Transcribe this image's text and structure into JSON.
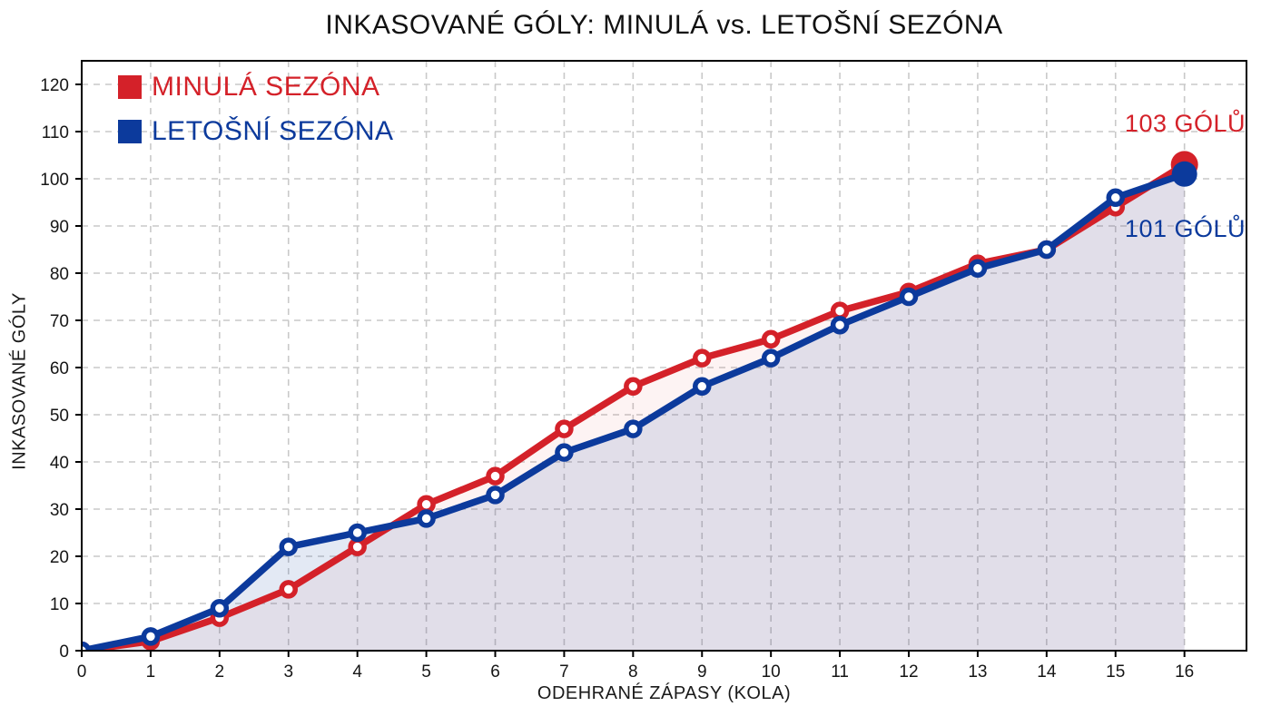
{
  "title": "INKASOVANÉ GÓLY: MINULÁ vs. LETOŠNÍ SEZÓNA",
  "colors": {
    "last_season": "#d42129",
    "this_season": "#0c3a9c",
    "grid": "#c9c9c9",
    "spine": "#000000",
    "tick_text": "#161616"
  },
  "chart_data": {
    "type": "line",
    "title": "INKASOVANÉ GÓLY: MINULÁ vs. LETOŠNÍ SEZÓNA",
    "xlabel": "ODEHRANÉ ZÁPASY (KOLA)",
    "ylabel": "INKASOVANÉ GÓLY",
    "x": [
      0,
      1,
      2,
      3,
      4,
      5,
      6,
      7,
      8,
      9,
      10,
      11,
      12,
      13,
      14,
      15,
      16
    ],
    "series": [
      {
        "name": "MINULÁ SEZÓNA",
        "color": "#d42129",
        "values": [
          0,
          2,
          7,
          13,
          22,
          31,
          37,
          47,
          56,
          62,
          66,
          72,
          76,
          82,
          85,
          94,
          103
        ],
        "end_label": "103 GÓLŮ",
        "fill_opacity": 0.055
      },
      {
        "name": "LETOŠNÍ SEZÓNA",
        "color": "#0c3a9c",
        "values": [
          0,
          3,
          9,
          22,
          25,
          28,
          33,
          42,
          47,
          56,
          62,
          69,
          75,
          81,
          85,
          96,
          101
        ],
        "end_label": "101 GÓLŮ",
        "fill_opacity": 0.115
      }
    ],
    "xticks": [
      0,
      1,
      2,
      3,
      4,
      5,
      6,
      7,
      8,
      9,
      10,
      11,
      12,
      13,
      14,
      15,
      16
    ],
    "yticks": [
      0,
      10,
      20,
      30,
      40,
      50,
      60,
      70,
      80,
      90,
      100,
      110,
      120
    ],
    "xlim": [
      0,
      16.9
    ],
    "ylim": [
      0,
      125
    ],
    "grid": "dashed",
    "legend_position": "upper-left"
  }
}
